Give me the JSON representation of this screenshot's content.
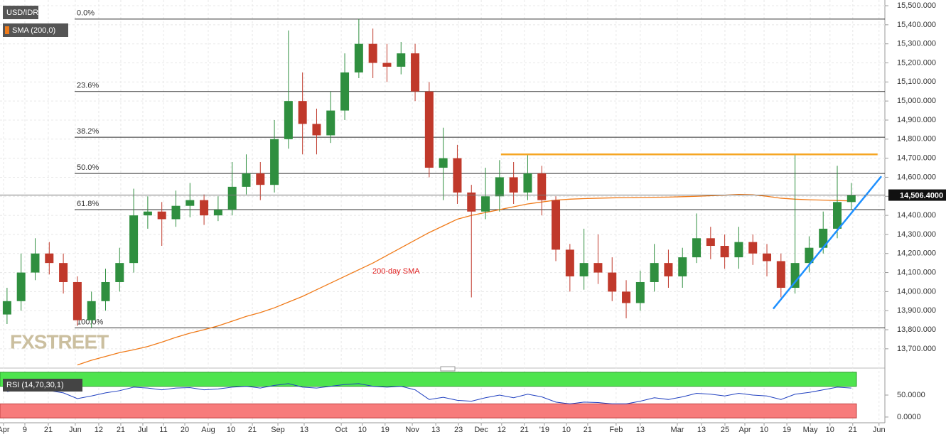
{
  "chart_data": [
    {
      "type": "candlestick",
      "title": "USD/IDR",
      "x": [
        3,
        9,
        15,
        21,
        27,
        33,
        39,
        45,
        51,
        57,
        63,
        69,
        75,
        81,
        87,
        93,
        99,
        105,
        111,
        117,
        123,
        129,
        135,
        141,
        147,
        153,
        159,
        165,
        171,
        177,
        183,
        189,
        195,
        201,
        207,
        213,
        219,
        225,
        231,
        237,
        243,
        249,
        255,
        261,
        267,
        273,
        279,
        285,
        291,
        297,
        303,
        309,
        315,
        321,
        327,
        333,
        339,
        345,
        351,
        357,
        363
      ],
      "open": [
        13880,
        13950,
        14100,
        14200,
        14150,
        14050,
        13850,
        13950,
        14050,
        14150,
        14400,
        14420,
        14380,
        14450,
        14480,
        14400,
        14430,
        14550,
        14620,
        14560,
        14800,
        15000,
        14880,
        14820,
        14950,
        15150,
        15300,
        15200,
        15180,
        15250,
        15050,
        14650,
        14700,
        14520,
        14420,
        14500,
        14600,
        14520,
        14620,
        14480,
        14220,
        14080,
        14150,
        14100,
        14000,
        13940,
        14050,
        14150,
        14080,
        14180,
        14280,
        14240,
        14180,
        14260,
        14200,
        14160,
        14020,
        14150,
        14230,
        14330,
        14470
      ],
      "high": [
        14020,
        14200,
        14280,
        14260,
        14200,
        14080,
        14000,
        14120,
        14230,
        14540,
        14500,
        14470,
        14530,
        14570,
        14510,
        14500,
        14680,
        14720,
        14680,
        14900,
        15370,
        15150,
        14960,
        15050,
        15250,
        15430,
        15380,
        15300,
        15310,
        15300,
        15100,
        14860,
        14770,
        14560,
        14650,
        14690,
        14680,
        14720,
        14660,
        14500,
        14250,
        14330,
        14300,
        14180,
        14060,
        14110,
        14250,
        14220,
        14230,
        14410,
        14340,
        14300,
        14340,
        14300,
        14250,
        14200,
        14720,
        14290,
        14420,
        14660,
        14570
      ],
      "low": [
        13830,
        13900,
        14060,
        14090,
        13990,
        13820,
        13810,
        13900,
        14000,
        14100,
        14330,
        14240,
        14340,
        14390,
        14350,
        14370,
        14400,
        14510,
        14480,
        14520,
        14750,
        14720,
        14720,
        14780,
        14900,
        15120,
        15120,
        15100,
        15140,
        15000,
        14600,
        14480,
        14460,
        13970,
        14380,
        14420,
        14460,
        14480,
        14400,
        14160,
        14000,
        14010,
        14040,
        13950,
        13860,
        13900,
        14000,
        14020,
        14020,
        14150,
        14170,
        14120,
        14120,
        14140,
        14080,
        13970,
        13990,
        14100,
        14200,
        14280,
        14430
      ],
      "close": [
        13950,
        14100,
        14200,
        14150,
        14050,
        13850,
        13950,
        14050,
        14150,
        14400,
        14420,
        14380,
        14450,
        14480,
        14400,
        14430,
        14550,
        14620,
        14560,
        14800,
        15000,
        14880,
        14820,
        14950,
        15150,
        15300,
        15200,
        15180,
        15250,
        15050,
        14650,
        14700,
        14520,
        14420,
        14500,
        14600,
        14520,
        14620,
        14480,
        14220,
        14080,
        14150,
        14100,
        14000,
        13940,
        14050,
        14150,
        14080,
        14180,
        14280,
        14240,
        14180,
        14260,
        14200,
        14160,
        14020,
        14150,
        14230,
        14330,
        14470,
        14506.4
      ],
      "up_color": "#2f8f3f",
      "down_color": "#c0392b",
      "series": [
        {
          "name": "SMA (200,0)",
          "color": "#f07b1a",
          "values": [
            null,
            null,
            null,
            null,
            null,
            13615,
            13640,
            13660,
            13680,
            13695,
            13712,
            13735,
            13760,
            13782,
            13800,
            13820,
            13845,
            13870,
            13890,
            13915,
            13945,
            13975,
            14010,
            14045,
            14080,
            14115,
            14150,
            14190,
            14230,
            14270,
            14310,
            14345,
            14380,
            14400,
            14415,
            14430,
            14445,
            14460,
            14470,
            14480,
            14485,
            14488,
            14490,
            14492,
            14493,
            14494,
            14495,
            14496,
            14498,
            14500,
            14503,
            14506,
            14510,
            14508,
            14500,
            14490,
            14485,
            14482,
            14480,
            14478,
            14476
          ]
        }
      ],
      "annotation": "200-day SMA",
      "levels": [
        {
          "value": 15430,
          "label": "0.0%"
        },
        {
          "value": 15050,
          "label": "23.6%"
        },
        {
          "value": 14810,
          "label": "38.2%"
        },
        {
          "value": 14620,
          "label": "50.0%"
        },
        {
          "value": 14430,
          "label": "61.8%"
        },
        {
          "value": 13810,
          "label": "100.0%"
        }
      ],
      "lines": [
        {
          "color": "#f5a623",
          "x": [
            213.6,
            374.2
          ],
          "y": [
            14720,
            14720
          ]
        },
        {
          "color": "#1e90ff",
          "x": [
            329.7,
            375.8
          ],
          "y": [
            13910,
            14605
          ]
        }
      ],
      "last": {
        "value": 14506.4,
        "label": "14,506.4000"
      },
      "watermark": "FXSTREET",
      "xlim": [
        0,
        377.3
      ],
      "ylim": [
        13610,
        15530
      ],
      "grid": true,
      "yticks": [
        {
          "value": 13700,
          "label": "13,700.000"
        },
        {
          "value": 13800,
          "label": "13,800.000"
        },
        {
          "value": 13900,
          "label": "13,900.000"
        },
        {
          "value": 14000,
          "label": "14,000.000"
        },
        {
          "value": 14100,
          "label": "14,100.000"
        },
        {
          "value": 14200,
          "label": "14,200.000"
        },
        {
          "value": 14300,
          "label": "14,300.000"
        },
        {
          "value": 14400,
          "label": "14,400.000"
        },
        {
          "value": 14500,
          "label": "14,500.000"
        },
        {
          "value": 14600,
          "label": "14,600.000"
        },
        {
          "value": 14700,
          "label": "14,700.000"
        },
        {
          "value": 14800,
          "label": "14,800.000"
        },
        {
          "value": 14900,
          "label": "14,900.000"
        },
        {
          "value": 15000,
          "label": "15,000.000"
        },
        {
          "value": 15100,
          "label": "15,100.000"
        },
        {
          "value": 15200,
          "label": "15,200.000"
        },
        {
          "value": 15300,
          "label": "15,300.000"
        },
        {
          "value": 15400,
          "label": "15,400.000"
        },
        {
          "value": 15500,
          "label": "15,500.000"
        }
      ],
      "xticks": [
        {
          "value": 1.5,
          "label": "Apr"
        },
        {
          "value": 10.6,
          "label": "9"
        },
        {
          "value": 20.6,
          "label": "21"
        },
        {
          "value": 32.1,
          "label": "Jun"
        },
        {
          "value": 42.1,
          "label": "12"
        },
        {
          "value": 51.5,
          "label": "21"
        },
        {
          "value": 60.9,
          "label": "Jul"
        },
        {
          "value": 69.7,
          "label": "11"
        },
        {
          "value": 78.8,
          "label": "20"
        },
        {
          "value": 88.8,
          "label": "Aug"
        },
        {
          "value": 98.5,
          "label": "10"
        },
        {
          "value": 107.6,
          "label": "21"
        },
        {
          "value": 118.5,
          "label": "Sep"
        },
        {
          "value": 129.7,
          "label": "13"
        },
        {
          "value": 145.5,
          "label": "Oct"
        },
        {
          "value": 154.5,
          "label": "10"
        },
        {
          "value": 164.2,
          "label": "19"
        },
        {
          "value": 175.8,
          "label": "Nov"
        },
        {
          "value": 185.8,
          "label": "13"
        },
        {
          "value": 195.5,
          "label": "23"
        },
        {
          "value": 205.2,
          "label": "Dec"
        },
        {
          "value": 213.9,
          "label": "12"
        },
        {
          "value": 223.6,
          "label": "21"
        },
        {
          "value": 232.1,
          "label": "'19"
        },
        {
          "value": 241.5,
          "label": "10"
        },
        {
          "value": 250.6,
          "label": "21"
        },
        {
          "value": 262.7,
          "label": "Feb"
        },
        {
          "value": 273,
          "label": "13"
        },
        {
          "value": 288.8,
          "label": "Mar"
        },
        {
          "value": 299.1,
          "label": "13"
        },
        {
          "value": 309.1,
          "label": "25"
        },
        {
          "value": 317.6,
          "label": "Apr"
        },
        {
          "value": 325.8,
          "label": "10"
        },
        {
          "value": 335.5,
          "label": "19"
        },
        {
          "value": 345.5,
          "label": "May"
        },
        {
          "value": 353.9,
          "label": "10"
        },
        {
          "value": 363.6,
          "label": "21"
        },
        {
          "value": 374.8,
          "label": "Jun"
        }
      ]
    },
    {
      "type": "line",
      "title": "RSI (14,70,30,1)",
      "color": "#2040c0",
      "upper": 70,
      "lower": 30,
      "upper_color": "#4ee44e",
      "lower_color": "#f77b7b",
      "values": [
        58,
        62,
        64,
        60,
        55,
        42,
        48,
        55,
        60,
        68,
        66,
        62,
        66,
        67,
        62,
        64,
        68,
        70,
        66,
        72,
        76,
        68,
        66,
        70,
        74,
        76,
        70,
        68,
        70,
        62,
        40,
        45,
        38,
        36,
        44,
        50,
        44,
        52,
        46,
        34,
        30,
        34,
        33,
        30,
        30,
        36,
        44,
        40,
        46,
        54,
        52,
        48,
        54,
        50,
        48,
        40,
        52,
        56,
        62,
        68,
        66
      ],
      "ylim": [
        -5,
        105
      ],
      "yticks": [
        {
          "value": 50,
          "label": "50.0000"
        },
        {
          "value": 0,
          "label": "0.0000"
        }
      ]
    }
  ]
}
